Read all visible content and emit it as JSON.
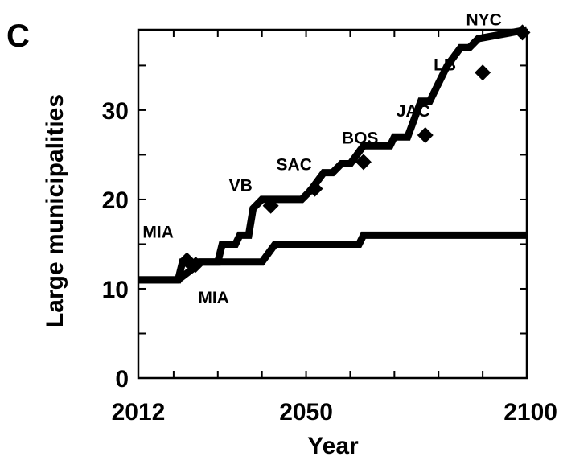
{
  "panel_label": "C",
  "chart_data": {
    "type": "line",
    "xlabel": "Year",
    "ylabel": "Large municipalities",
    "xlim": [
      2012,
      2100
    ],
    "ylim": [
      0,
      39
    ],
    "x_ticks": [
      2012,
      2050,
      2100
    ],
    "y_ticks": [
      0,
      10,
      20,
      30
    ],
    "grid": false,
    "legend": "none",
    "series": [
      {
        "points": [
          [
            2012,
            11
          ],
          [
            2021,
            11
          ],
          [
            2022,
            13
          ],
          [
            2023,
            13
          ],
          [
            2024,
            12.5
          ],
          [
            2025,
            13
          ],
          [
            2030,
            13
          ],
          [
            2031,
            15
          ],
          [
            2034,
            15
          ],
          [
            2035,
            16
          ],
          [
            2037,
            16
          ],
          [
            2038,
            19
          ],
          [
            2040,
            20
          ],
          [
            2049,
            20
          ],
          [
            2051,
            21
          ],
          [
            2054,
            23
          ],
          [
            2056,
            23
          ],
          [
            2058,
            24
          ],
          [
            2060,
            24
          ],
          [
            2063,
            26
          ],
          [
            2069,
            26
          ],
          [
            2070,
            27
          ],
          [
            2073,
            27
          ],
          [
            2076,
            31
          ],
          [
            2078,
            31
          ],
          [
            2080,
            33
          ],
          [
            2082,
            35
          ],
          [
            2085,
            37
          ],
          [
            2087,
            37
          ],
          [
            2089,
            38
          ],
          [
            2100,
            39
          ]
        ]
      },
      {
        "points": [
          [
            2012,
            11
          ],
          [
            2021,
            11
          ],
          [
            2025,
            12.5
          ],
          [
            2026,
            13
          ],
          [
            2040,
            13
          ],
          [
            2043,
            15
          ],
          [
            2062,
            15
          ],
          [
            2063,
            16
          ],
          [
            2100,
            16
          ]
        ]
      }
    ],
    "markers": [
      {
        "x": 2023,
        "y": 13.2,
        "label": "MIA",
        "label_dx": -55,
        "label_dy": -28
      },
      {
        "x": 2025,
        "y": 12.7,
        "label": "MIA",
        "label_dx": 3,
        "label_dy": 48
      },
      {
        "x": 2042,
        "y": 19.3,
        "label": "VB",
        "label_dx": -52,
        "label_dy": -18
      },
      {
        "x": 2052,
        "y": 21.2,
        "label": "SAC",
        "label_dx": -48,
        "label_dy": -23
      },
      {
        "x": 2063,
        "y": 24.2,
        "label": "BOS",
        "label_dx": -27,
        "label_dy": -23
      },
      {
        "x": 2077,
        "y": 27.2,
        "label": "JAC",
        "label_dx": -36,
        "label_dy": -23
      },
      {
        "x": 2090,
        "y": 34.2,
        "label": "LB",
        "label_dx": -61,
        "label_dy": -3
      },
      {
        "x": 2099,
        "y": 38.7,
        "label": "NYC",
        "label_dx": -70,
        "label_dy": -9
      }
    ]
  }
}
